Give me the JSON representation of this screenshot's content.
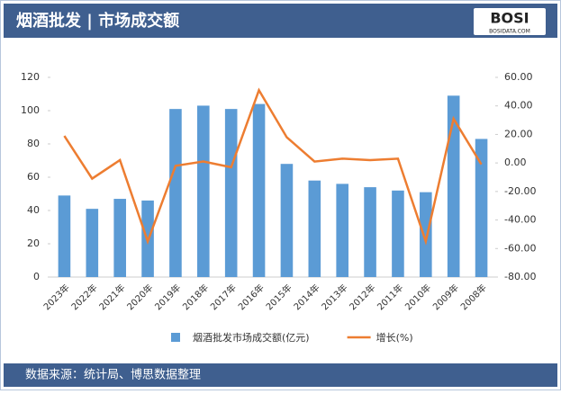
{
  "header": {
    "title": "烟酒批发 | 市场成交额",
    "logo": "BOSI",
    "logo_sub": "BOSIDATA.COM"
  },
  "chart_data": {
    "type": "bar",
    "categories": [
      "2023年",
      "2022年",
      "2021年",
      "2020年",
      "2019年",
      "2018年",
      "2017年",
      "2016年",
      "2015年",
      "2014年",
      "2013年",
      "2012年",
      "2011年",
      "2010年",
      "2009年",
      "2008年"
    ],
    "series": [
      {
        "name": "烟酒批发市场成交额(亿元)",
        "type": "bar",
        "color": "#5b9bd5",
        "values": [
          49,
          41,
          47,
          46,
          101,
          103,
          101,
          104,
          68,
          58,
          56,
          54,
          52,
          51,
          109,
          83
        ]
      },
      {
        "name": "增长(%)",
        "type": "line",
        "axis": "y2",
        "color": "#ed7d31",
        "values": [
          19,
          -11,
          2,
          -55,
          -2,
          1,
          -3,
          51,
          18,
          1,
          3,
          2,
          3,
          -55,
          31,
          -1
        ]
      }
    ],
    "ylim": [
      0,
      120
    ],
    "yticks": [
      0,
      20,
      40,
      60,
      80,
      100,
      120
    ],
    "y2lim": [
      -80,
      60
    ],
    "y2ticks": [
      {
        "value": -80,
        "label": "-80.00"
      },
      {
        "value": -60,
        "label": "-60.00"
      },
      {
        "value": -40,
        "label": "-40.00"
      },
      {
        "value": -20,
        "label": "-20.00"
      },
      {
        "value": 0,
        "label": "0.00"
      },
      {
        "value": 20,
        "label": "20.00"
      },
      {
        "value": 40,
        "label": "40.00"
      },
      {
        "value": 60,
        "label": "60.00"
      }
    ],
    "legend": "bottom"
  },
  "footer": {
    "source": "数据来源：统计局、博思数据整理"
  }
}
